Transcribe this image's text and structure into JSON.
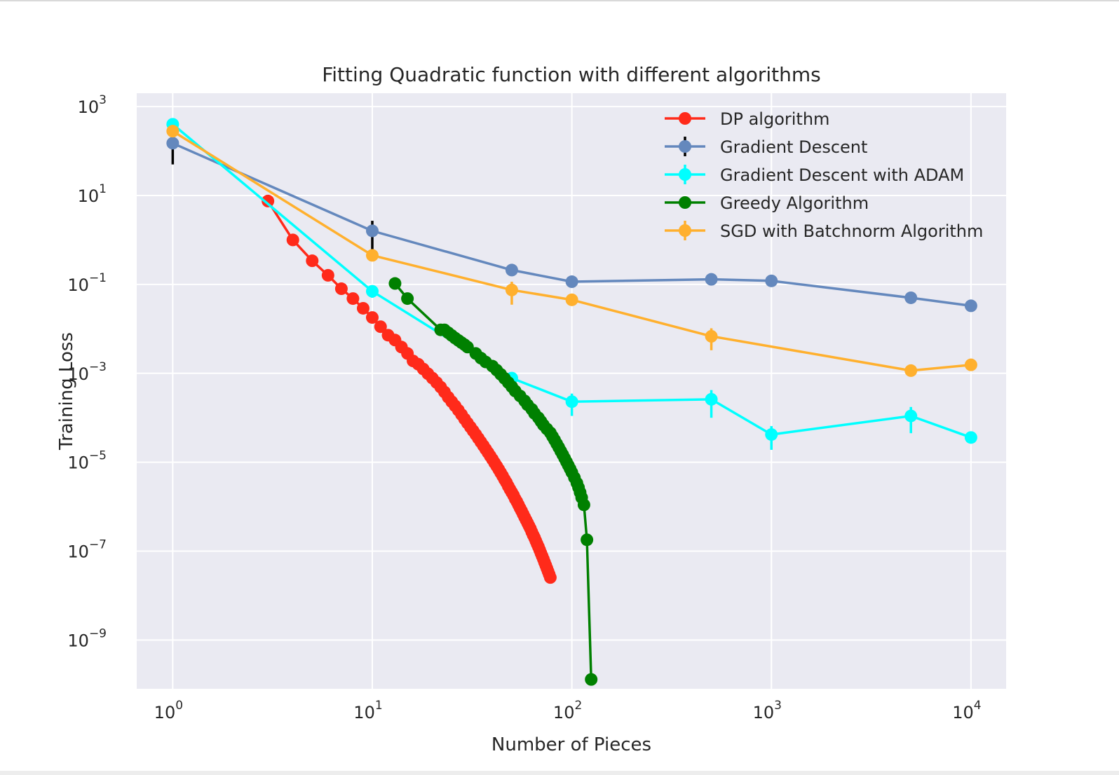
{
  "chart_data": {
    "type": "line",
    "title": "Fitting Quadratic function with different algorithms",
    "xlabel": "Number of Pieces",
    "ylabel": "Training Loss",
    "xscale": "log",
    "yscale": "log",
    "xlim": [
      0.66,
      15000
    ],
    "ylim": [
      8e-11,
      2000
    ],
    "xticks": [
      1,
      10,
      100,
      1000,
      10000
    ],
    "xtick_labels": [
      {
        "base": "10",
        "exp": "0"
      },
      {
        "base": "10",
        "exp": "1"
      },
      {
        "base": "10",
        "exp": "2"
      },
      {
        "base": "10",
        "exp": "3"
      },
      {
        "base": "10",
        "exp": "4"
      }
    ],
    "yticks": [
      1e-09,
      1e-07,
      1e-05,
      0.001,
      0.1,
      10,
      1000
    ],
    "ytick_labels": [
      {
        "base": "10",
        "exp": "−9"
      },
      {
        "base": "10",
        "exp": "−7"
      },
      {
        "base": "10",
        "exp": "−5"
      },
      {
        "base": "10",
        "exp": "−3"
      },
      {
        "base": "10",
        "exp": "−1"
      },
      {
        "base": "10",
        "exp": "1"
      },
      {
        "base": "10",
        "exp": "3"
      }
    ],
    "grid": true,
    "legend_position": "top-right",
    "background": "#eaeaf2",
    "series": [
      {
        "name": "DP algorithm",
        "color": "#ff2a1a",
        "x": [
          3,
          4,
          5,
          6,
          7,
          8,
          9,
          10,
          11,
          12,
          13,
          14,
          15,
          16,
          17,
          18,
          19,
          20,
          21,
          22,
          23,
          24,
          25,
          26,
          27,
          28,
          29,
          30,
          31,
          32,
          33,
          34,
          35,
          36,
          37,
          38,
          39,
          40,
          41,
          42,
          43,
          44,
          45,
          46,
          47,
          48,
          49,
          50,
          51,
          52,
          53,
          54,
          55,
          56,
          57,
          58,
          59,
          60,
          61,
          62,
          63,
          64,
          65,
          66,
          67,
          68,
          69,
          70,
          71,
          72,
          73,
          74,
          75,
          76,
          77,
          78
        ],
        "y": [
          7.5,
          1.0,
          0.34,
          0.16,
          0.08,
          0.048,
          0.029,
          0.018,
          0.0112,
          0.0072,
          0.0056,
          0.0039,
          0.0028,
          0.0019,
          0.0016,
          0.00125,
          0.00098,
          0.00078,
          0.00062,
          0.00049,
          0.00038,
          0.00029,
          0.00023,
          0.000185,
          0.000148,
          0.000118,
          9.4e-05,
          7.6e-05,
          6.2e-05,
          5.1e-05,
          4.2e-05,
          3.45e-05,
          2.85e-05,
          2.37e-05,
          1.97e-05,
          1.65e-05,
          1.38e-05,
          1.16e-05,
          9.7e-06,
          8.2e-06,
          6.9e-06,
          5.8e-06,
          4.9e-06,
          4.1e-06,
          3.5e-06,
          2.9e-06,
          2.45e-06,
          2.1e-06,
          1.8e-06,
          1.5e-06,
          1.3e-06,
          1.1e-06,
          9.3e-07,
          8e-07,
          6.8e-07,
          5.8e-07,
          5e-07,
          4.3e-07,
          3.7e-07,
          3.2e-07,
          2.7e-07,
          2.3e-07,
          2e-07,
          1.7e-07,
          1.45e-07,
          1.25e-07,
          1.06e-07,
          9e-08,
          7.7e-08,
          6.6e-08,
          5.6e-08,
          4.8e-08,
          4.1e-08,
          3.5e-08,
          3e-08,
          2.55e-08
        ]
      },
      {
        "name": "Gradient Descent",
        "color": "#6488bd",
        "x": [
          1,
          10,
          50,
          100,
          500,
          1000,
          5000,
          10000
        ],
        "y": [
          150,
          1.6,
          0.21,
          0.115,
          0.13,
          0.12,
          0.05,
          0.033
        ],
        "yerr": [
          100,
          1.1,
          0,
          0,
          0,
          0,
          0,
          0
        ]
      },
      {
        "name": "Gradient Descent with ADAM",
        "color": "#00ffff",
        "x": [
          1,
          10,
          50,
          100,
          500,
          1000,
          5000,
          10000
        ],
        "y": [
          400,
          0.07,
          0.00078,
          0.00023,
          0.00026,
          4.2e-05,
          0.00011,
          3.6e-05
        ],
        "yerr": [
          0,
          0.02,
          0,
          0.00012,
          0.00016,
          2.3e-05,
          6.5e-05,
          0
        ]
      },
      {
        "name": "Greedy Algorithm",
        "color": "#008000",
        "x": [
          13,
          15,
          22,
          23,
          24,
          25,
          26,
          27,
          28,
          29,
          30,
          33,
          35,
          37,
          40,
          42,
          44,
          46,
          48,
          50,
          52,
          55,
          58,
          60,
          63,
          65,
          68,
          70,
          72,
          75,
          78,
          80,
          82,
          84,
          86,
          88,
          90,
          92,
          94,
          96,
          98,
          100,
          103,
          106,
          108,
          110,
          112,
          115,
          119,
          125
        ],
        "y": [
          0.105,
          0.048,
          0.0095,
          0.0095,
          0.0082,
          0.0071,
          0.0062,
          0.0055,
          0.0049,
          0.0044,
          0.0039,
          0.0028,
          0.0022,
          0.0018,
          0.00145,
          0.00118,
          0.00095,
          0.00077,
          0.00062,
          0.0005,
          0.0004,
          0.00031,
          0.00024,
          0.000195,
          0.000155,
          0.000125,
          0.0001,
          8.3e-05,
          6.9e-05,
          5.6e-05,
          4.6e-05,
          3.8e-05,
          3.15e-05,
          2.6e-05,
          2.15e-05,
          1.78e-05,
          1.48e-05,
          1.23e-05,
          1.02e-05,
          8.5e-06,
          7.1e-06,
          5.9e-06,
          4.5e-06,
          3.4e-06,
          2.7e-06,
          2.1e-06,
          1.6e-06,
          1.1e-06,
          1.8e-07,
          1.3e-10
        ]
      },
      {
        "name": "SGD with Batchnorm Algorithm",
        "color": "#ffb02e",
        "x": [
          1,
          10,
          50,
          100,
          500,
          5000,
          10000
        ],
        "y": [
          280,
          0.45,
          0.075,
          0.045,
          0.0068,
          0.00115,
          0.00155
        ],
        "yerr": [
          0,
          0,
          0.04,
          0,
          0.0035,
          0,
          0
        ]
      }
    ]
  }
}
